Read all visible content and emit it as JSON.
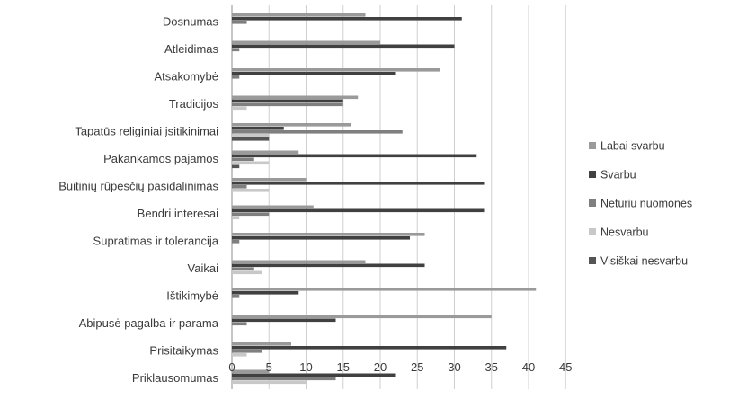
{
  "chart_data": {
    "type": "bar",
    "orientation": "horizontal",
    "title": "",
    "xlabel": "",
    "ylabel": "",
    "xlim": [
      0,
      45
    ],
    "xticks": [
      0,
      5,
      10,
      15,
      20,
      25,
      30,
      35,
      40,
      45
    ],
    "grid": "vertical",
    "legend_position": "right",
    "categories": [
      "Dosnumas",
      "Atleidimas",
      "Atsakomybė",
      "Tradicijos",
      "Tapatūs religiniai įsitikinimai",
      "Pakankamos pajamos",
      "Buitinių rūpesčių pasidalinimas",
      "Bendri interesai",
      "Supratimas ir tolerancija",
      "Vaikai",
      "Ištikimybė",
      "Abipusė pagalba ir parama",
      "Prisitaikymas",
      "Priklausomumas"
    ],
    "series": [
      {
        "name": "Labai svarbu",
        "color": "#9a9a9a",
        "values": [
          18,
          20,
          28,
          17,
          16,
          9,
          10,
          11,
          26,
          18,
          41,
          35,
          8,
          5
        ]
      },
      {
        "name": "Svarbu",
        "color": "#404040",
        "values": [
          31,
          30,
          22,
          15,
          7,
          33,
          34,
          34,
          24,
          26,
          9,
          14,
          37,
          22
        ]
      },
      {
        "name": "Neturiu nuomonės",
        "color": "#7f7f7f",
        "values": [
          2,
          1,
          1,
          15,
          23,
          3,
          2,
          5,
          1,
          3,
          1,
          2,
          4,
          14
        ]
      },
      {
        "name": "Nesvarbu",
        "color": "#c8c8c8",
        "values": [
          0,
          0,
          0,
          2,
          5,
          5,
          5,
          1,
          0,
          4,
          0,
          0,
          2,
          10
        ]
      },
      {
        "name": "Visiškai nesvarbu",
        "color": "#555555",
        "values": [
          0,
          0,
          0,
          0,
          5,
          1,
          0,
          0,
          0,
          0,
          0,
          0,
          0,
          0
        ]
      }
    ]
  }
}
